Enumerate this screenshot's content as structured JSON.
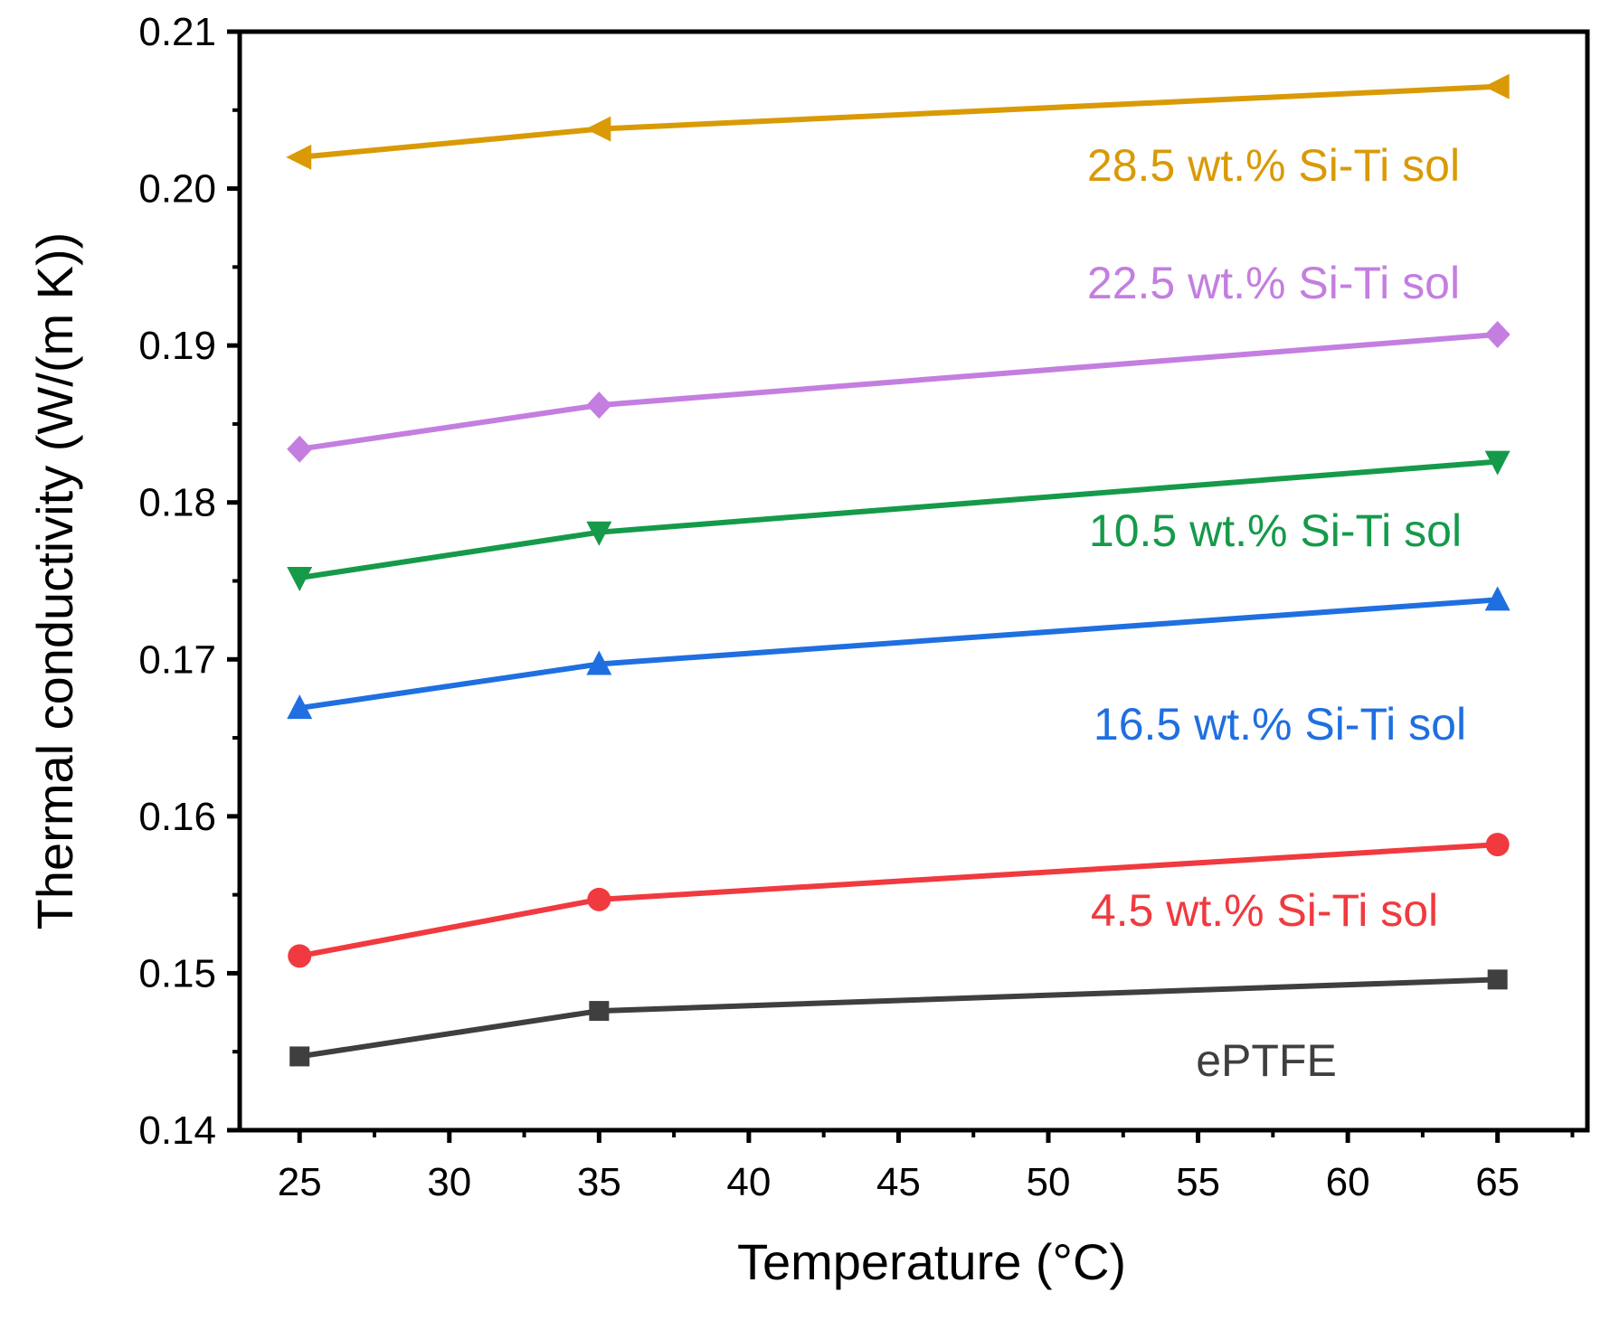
{
  "chart_data": {
    "type": "line",
    "title": "",
    "xlabel": "Temperature (°C)",
    "ylabel": "Thermal conductivity (W/(m K))",
    "xlim": [
      23,
      68
    ],
    "ylim": [
      0.14,
      0.21
    ],
    "x_ticks": [
      25,
      30,
      35,
      40,
      45,
      50,
      55,
      60,
      65
    ],
    "x_tick_labels": [
      "25",
      "30",
      "35",
      "40",
      "45",
      "50",
      "55",
      "60",
      "65"
    ],
    "y_ticks": [
      0.14,
      0.15,
      0.16,
      0.17,
      0.18,
      0.19,
      0.2,
      0.21
    ],
    "y_tick_labels": [
      "0.14",
      "0.15",
      "0.16",
      "0.17",
      "0.18",
      "0.19",
      "0.20",
      "0.21"
    ],
    "grid": false,
    "x": [
      25,
      35,
      65
    ],
    "series": [
      {
        "name": "ePTFE",
        "label": "ePTFE",
        "color": "#3f3f3f",
        "marker": "square",
        "values": [
          0.1447,
          0.1476,
          0.1496
        ]
      },
      {
        "name": "4.5 wt.% Si-Ti sol",
        "label": "4.5 wt.% Si-Ti sol",
        "color": "#f03a3f",
        "marker": "circle",
        "values": [
          0.1511,
          0.1547,
          0.1582
        ]
      },
      {
        "name": "16.5 wt.% Si-Ti sol",
        "label": "16.5 wt.% Si-Ti sol",
        "color": "#1f6fe0",
        "marker": "triangle-up",
        "values": [
          0.1669,
          0.1697,
          0.1738
        ]
      },
      {
        "name": "10.5 wt.% Si-Ti sol",
        "label": "10.5 wt.% Si-Ti sol",
        "color": "#159a4a",
        "marker": "triangle-down",
        "values": [
          0.1752,
          0.1781,
          0.1826
        ]
      },
      {
        "name": "22.5 wt.% Si-Ti sol",
        "label": "22.5 wt.% Si-Ti sol",
        "color": "#c47ee0",
        "marker": "diamond",
        "values": [
          0.1834,
          0.1862,
          0.1907
        ]
      },
      {
        "name": "28.5 wt.% Si-Ti sol",
        "label": "28.5 wt.% Si-Ti sol",
        "color": "#d99a06",
        "marker": "triangle-left",
        "values": [
          0.202,
          0.2038,
          0.2065
        ]
      }
    ]
  }
}
